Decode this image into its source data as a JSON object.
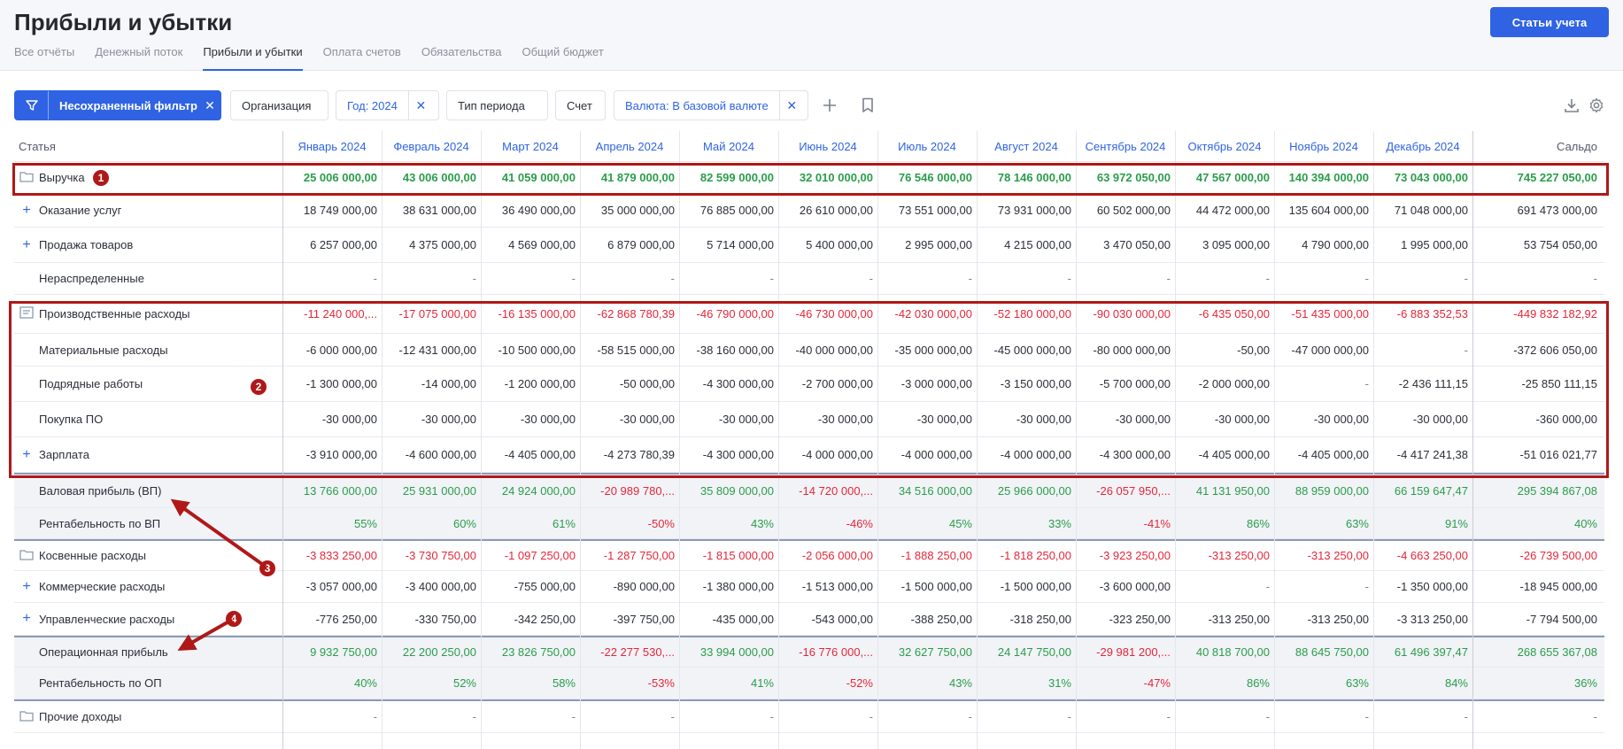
{
  "header": {
    "title": "Прибыли и убытки",
    "accounts_button": "Статьи учета",
    "tabs": [
      "Все отчёты",
      "Денежный поток",
      "Прибыли и убытки",
      "Оплата счетов",
      "Обязательства",
      "Общий бюджет"
    ],
    "active_tab": "Прибыли и убытки"
  },
  "filters": {
    "unsaved": "Несохраненный фильтр",
    "organization": "Организация",
    "year": "Год: 2024",
    "period_type": "Тип периода",
    "account": "Счет",
    "currency": "Валюта: В базовой валюте"
  },
  "table": {
    "col_article": "Статья",
    "months": [
      "Январь 2024",
      "Февраль 2024",
      "Март 2024",
      "Апрель 2024",
      "Май 2024",
      "Июнь 2024",
      "Июль 2024",
      "Август 2024",
      "Сентябрь 2024",
      "Октябрь 2024",
      "Ноябрь 2024",
      "Декабрь 2024"
    ],
    "col_saldo": "Сальдо",
    "rows": [
      {
        "label": "Выручка",
        "icon": "folder-icon",
        "style": "bold",
        "tone": "pos",
        "values": [
          "25 006 000,00",
          "43 006 000,00",
          "41 059 000,00",
          "41 879 000,00",
          "82 599 000,00",
          "32 010 000,00",
          "76 546 000,00",
          "78 146 000,00",
          "63 972 050,00",
          "47 567 000,00",
          "140 394 000,00",
          "73 043 000,00",
          "745 227 050,00"
        ]
      },
      {
        "label": "Оказание услуг",
        "icon": "plus",
        "style": "plain",
        "tone": "plain",
        "values": [
          "18 749 000,00",
          "38 631 000,00",
          "36 490 000,00",
          "35 000 000,00",
          "76 885 000,00",
          "26 610 000,00",
          "73 551 000,00",
          "73 931 000,00",
          "60 502 000,00",
          "44 472 000,00",
          "135 604 000,00",
          "71 048 000,00",
          "691 473 000,00"
        ]
      },
      {
        "label": "Продажа товаров",
        "icon": "plus",
        "style": "plain",
        "tone": "plain",
        "values": [
          "6 257 000,00",
          "4 375 000,00",
          "4 569 000,00",
          "6 879 000,00",
          "5 714 000,00",
          "5 400 000,00",
          "2 995 000,00",
          "4 215 000,00",
          "3 470 050,00",
          "3 095 000,00",
          "4 790 000,00",
          "1 995 000,00",
          "53 754 050,00"
        ]
      },
      {
        "label": "Нераспределенные",
        "icon": "none",
        "style": "plain",
        "tone": "muted",
        "values": [
          "-",
          "-",
          "-",
          "-",
          "-",
          "-",
          "-",
          "-",
          "-",
          "-",
          "-",
          "-",
          "-"
        ]
      },
      {
        "label": "Производственные расходы",
        "icon": "list-icon",
        "style": "plain",
        "tone": "neg",
        "values": [
          "-11 240 000,...",
          "-17 075 000,00",
          "-16 135 000,00",
          "-62 868 780,39",
          "-46 790 000,00",
          "-46 730 000,00",
          "-42 030 000,00",
          "-52 180 000,00",
          "-90 030 000,00",
          "-6 435 050,00",
          "-51 435 000,00",
          "-6 883 352,53",
          "-449 832 182,92"
        ]
      },
      {
        "label": "Материальные расходы",
        "icon": "none",
        "style": "plain",
        "tone": "plain",
        "values": [
          "-6 000 000,00",
          "-12 431 000,00",
          "-10 500 000,00",
          "-58 515 000,00",
          "-38 160 000,00",
          "-40 000 000,00",
          "-35 000 000,00",
          "-45 000 000,00",
          "-80 000 000,00",
          "-50,00",
          "-47 000 000,00",
          "-",
          "-372 606 050,00"
        ]
      },
      {
        "label": "Подрядные работы",
        "icon": "none",
        "style": "plain",
        "tone": "plain",
        "values": [
          "-1 300 000,00",
          "-14 000,00",
          "-1 200 000,00",
          "-50 000,00",
          "-4 300 000,00",
          "-2 700 000,00",
          "-3 000 000,00",
          "-3 150 000,00",
          "-5 700 000,00",
          "-2 000 000,00",
          "-",
          "-2 436 111,15",
          "-25 850 111,15"
        ]
      },
      {
        "label": "Покупка ПО",
        "icon": "none",
        "style": "plain",
        "tone": "plain",
        "values": [
          "-30 000,00",
          "-30 000,00",
          "-30 000,00",
          "-30 000,00",
          "-30 000,00",
          "-30 000,00",
          "-30 000,00",
          "-30 000,00",
          "-30 000,00",
          "-30 000,00",
          "-30 000,00",
          "-30 000,00",
          "-360 000,00"
        ]
      },
      {
        "label": "Зарплата",
        "icon": "plus",
        "style": "plain",
        "tone": "plain",
        "values": [
          "-3 910 000,00",
          "-4 600 000,00",
          "-4 405 000,00",
          "-4 273 780,39",
          "-4 300 000,00",
          "-4 000 000,00",
          "-4 000 000,00",
          "-4 000 000,00",
          "-4 300 000,00",
          "-4 405 000,00",
          "-4 405 000,00",
          "-4 417 241,38",
          "-51 016 021,77"
        ]
      },
      {
        "label": "Валовая прибыль (ВП)",
        "icon": "none",
        "style": "summary",
        "tone": "mixed",
        "values": [
          "13 766 000,00",
          "25 931 000,00",
          "24 924 000,00",
          "-20 989 780,...",
          "35 809 000,00",
          "-14 720 000,...",
          "34 516 000,00",
          "25 966 000,00",
          "-26 057 950,...",
          "41 131 950,00",
          "88 959 000,00",
          "66 159 647,47",
          "295 394 867,08"
        ]
      },
      {
        "label": "Рентабельность по ВП",
        "icon": "none",
        "style": "summary",
        "tone": "mixed",
        "values": [
          "55%",
          "60%",
          "61%",
          "-50%",
          "43%",
          "-46%",
          "45%",
          "33%",
          "-41%",
          "86%",
          "63%",
          "91%",
          "40%"
        ]
      },
      {
        "label": "Косвенные расходы",
        "icon": "folder-icon",
        "style": "plain",
        "tone": "neg",
        "values": [
          "-3 833 250,00",
          "-3 730 750,00",
          "-1 097 250,00",
          "-1 287 750,00",
          "-1 815 000,00",
          "-2 056 000,00",
          "-1 888 250,00",
          "-1 818 250,00",
          "-3 923 250,00",
          "-313 250,00",
          "-313 250,00",
          "-4 663 250,00",
          "-26 739 500,00"
        ]
      },
      {
        "label": "Коммерческие расходы",
        "icon": "plus",
        "style": "plain",
        "tone": "plain",
        "values": [
          "-3 057 000,00",
          "-3 400 000,00",
          "-755 000,00",
          "-890 000,00",
          "-1 380 000,00",
          "-1 513 000,00",
          "-1 500 000,00",
          "-1 500 000,00",
          "-3 600 000,00",
          "-",
          "-",
          "-1 350 000,00",
          "-18 945 000,00"
        ]
      },
      {
        "label": "Управленческие расходы",
        "icon": "plus",
        "style": "plain",
        "tone": "plain",
        "values": [
          "-776 250,00",
          "-330 750,00",
          "-342 250,00",
          "-397 750,00",
          "-435 000,00",
          "-543 000,00",
          "-388 250,00",
          "-318 250,00",
          "-323 250,00",
          "-313 250,00",
          "-313 250,00",
          "-3 313 250,00",
          "-7 794 500,00"
        ]
      },
      {
        "label": "Операционная прибыль",
        "icon": "none",
        "style": "summary",
        "tone": "mixed",
        "values": [
          "9 932 750,00",
          "22 200 250,00",
          "23 826 750,00",
          "-22 277 530,...",
          "33 994 000,00",
          "-16 776 000,...",
          "32 627 750,00",
          "24 147 750,00",
          "-29 981 200,...",
          "40 818 700,00",
          "88 645 750,00",
          "61 496 397,47",
          "268 655 367,08"
        ]
      },
      {
        "label": "Рентабельность по ОП",
        "icon": "none",
        "style": "summary",
        "tone": "mixed",
        "values": [
          "40%",
          "52%",
          "58%",
          "-53%",
          "41%",
          "-52%",
          "43%",
          "31%",
          "-47%",
          "86%",
          "63%",
          "84%",
          "36%"
        ]
      },
      {
        "label": "Прочие доходы",
        "icon": "folder-icon",
        "style": "plain",
        "tone": "muted",
        "values": [
          "-",
          "-",
          "-",
          "-",
          "-",
          "-",
          "-",
          "-",
          "-",
          "-",
          "-",
          "-",
          "-"
        ]
      }
    ]
  },
  "annotations": [
    "1",
    "2",
    "3",
    "4"
  ],
  "colors": {
    "accent": "#2f63e3",
    "positive": "#2a9d4a",
    "negative": "#e5273a",
    "annotation": "#b01818"
  }
}
